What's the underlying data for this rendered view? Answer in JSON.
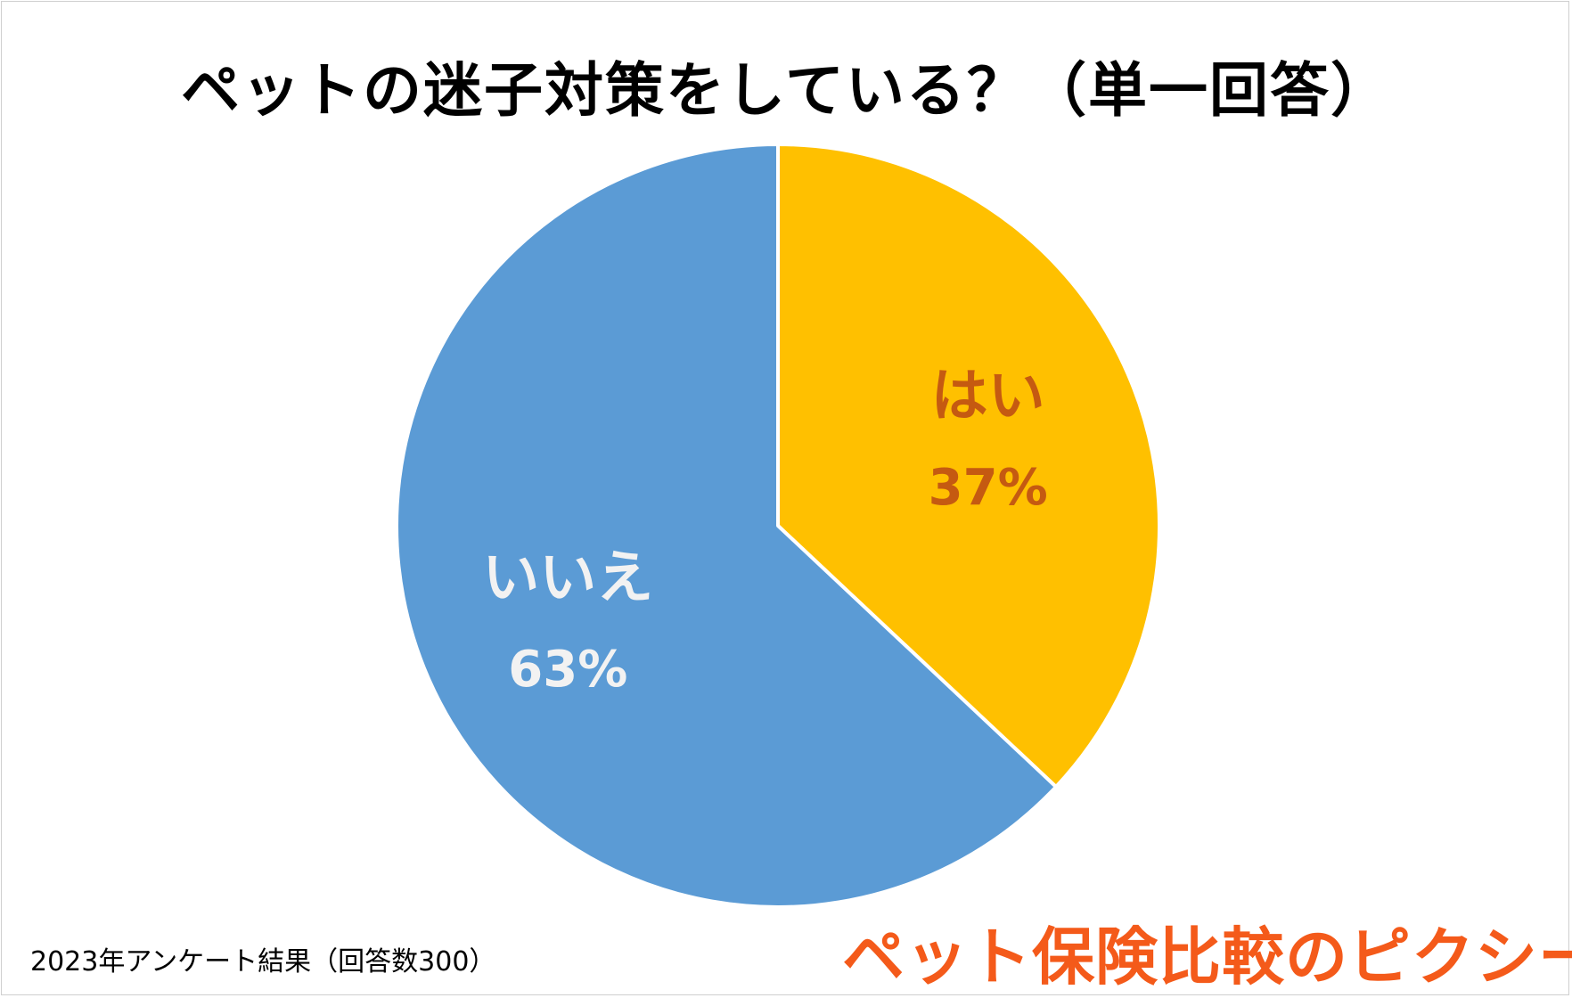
{
  "chart_data": {
    "type": "pie",
    "title": "ペットの迷子対策をしている？（単一回答）",
    "slices": [
      {
        "label": "はい",
        "percent_label": "37%",
        "value": 37,
        "color": "#FFC000",
        "text_color": "#C55A11"
      },
      {
        "label": "いいえ",
        "percent_label": "63%",
        "value": 63,
        "color": "#5B9BD5",
        "text_color": "#F2F2F2"
      }
    ],
    "start_angle": "12 o'clock",
    "direction": "clockwise"
  },
  "footnote": "2023年アンケート結果（回答数300）",
  "logo_text": "ペット保険比較のピクシー"
}
